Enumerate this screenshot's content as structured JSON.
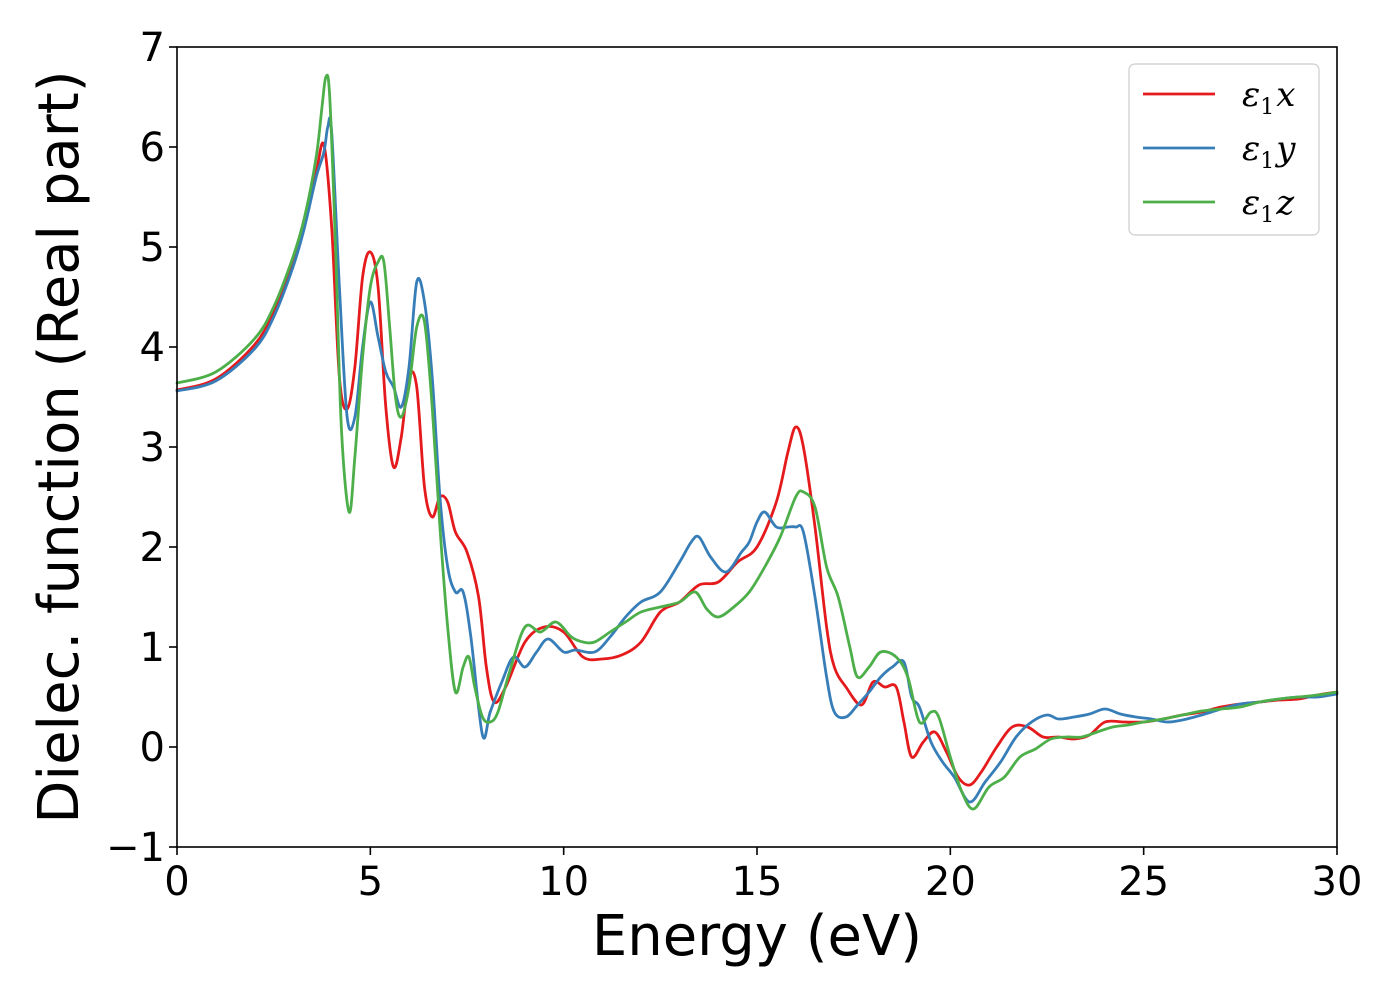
{
  "chart_data": {
    "type": "line",
    "xlabel": "Energy (eV)",
    "ylabel": "Dielec. function (Real part)",
    "xlim": [
      0,
      30
    ],
    "ylim": [
      -1,
      7
    ],
    "xticks": [
      0,
      5,
      10,
      15,
      20,
      25,
      30
    ],
    "yticks": [
      -1,
      0,
      1,
      2,
      3,
      4,
      5,
      6,
      7
    ],
    "xtick_labels": [
      "0",
      "5",
      "10",
      "15",
      "20",
      "25",
      "30"
    ],
    "ytick_labels": [
      "−1",
      "0",
      "1",
      "2",
      "3",
      "4",
      "5",
      "6",
      "7"
    ],
    "grid": false,
    "legend_position": "top-right",
    "series": [
      {
        "name": "ε1x",
        "legend": {
          "base": "ε",
          "sub": "1",
          "var": "x"
        },
        "color": "#e41a1c",
        "x": [
          0,
          1,
          2,
          2.5,
          3,
          3.3,
          3.6,
          3.8,
          4.0,
          4.2,
          4.4,
          4.6,
          4.8,
          5.0,
          5.2,
          5.4,
          5.6,
          5.8,
          6.0,
          6.2,
          6.4,
          6.6,
          6.8,
          7.0,
          7.2,
          7.5,
          7.8,
          8.0,
          8.2,
          8.5,
          9.0,
          9.5,
          10.0,
          10.5,
          11.0,
          11.5,
          12.0,
          12.5,
          13.0,
          13.5,
          14.0,
          14.5,
          15.0,
          15.5,
          15.8,
          16.0,
          16.2,
          16.5,
          16.8,
          17.0,
          17.3,
          17.7,
          18.0,
          18.3,
          18.6,
          18.8,
          19.0,
          19.3,
          19.6,
          19.9,
          20.2,
          20.5,
          20.8,
          21.2,
          21.6,
          22.0,
          22.4,
          22.8,
          23.2,
          23.6,
          24.0,
          24.5,
          25.0,
          25.5,
          26.0,
          26.5,
          27.0,
          27.5,
          28.0,
          28.5,
          29.0,
          29.5,
          30.0
        ],
        "y": [
          3.57,
          3.68,
          4.02,
          4.35,
          4.85,
          5.25,
          5.75,
          6.02,
          5.2,
          3.7,
          3.38,
          3.8,
          4.7,
          4.95,
          4.6,
          3.4,
          2.8,
          3.1,
          3.7,
          3.6,
          2.6,
          2.3,
          2.5,
          2.45,
          2.15,
          1.95,
          1.5,
          0.8,
          0.45,
          0.6,
          1.05,
          1.2,
          1.15,
          0.9,
          0.88,
          0.92,
          1.05,
          1.35,
          1.45,
          1.62,
          1.65,
          1.85,
          2.0,
          2.45,
          2.95,
          3.2,
          3.0,
          2.2,
          1.2,
          0.8,
          0.6,
          0.42,
          0.65,
          0.6,
          0.6,
          0.25,
          -0.1,
          0.05,
          0.15,
          -0.05,
          -0.3,
          -0.38,
          -0.25,
          0.0,
          0.2,
          0.2,
          0.1,
          0.1,
          0.08,
          0.12,
          0.25,
          0.25,
          0.25,
          0.28,
          0.32,
          0.35,
          0.4,
          0.43,
          0.45,
          0.47,
          0.48,
          0.52,
          0.55
        ]
      },
      {
        "name": "ε1y",
        "legend": {
          "base": "ε",
          "sub": "1",
          "var": "y"
        },
        "color": "#377eb8",
        "x": [
          0,
          1,
          2,
          2.5,
          3,
          3.3,
          3.6,
          3.8,
          3.9,
          4.0,
          4.2,
          4.4,
          4.6,
          4.8,
          5.0,
          5.2,
          5.4,
          5.6,
          5.8,
          6.0,
          6.2,
          6.4,
          6.6,
          6.8,
          7.0,
          7.2,
          7.4,
          7.6,
          7.9,
          8.1,
          8.4,
          8.7,
          9.0,
          9.3,
          9.6,
          10.0,
          10.3,
          10.8,
          11.2,
          11.6,
          12.0,
          12.5,
          13.0,
          13.3,
          13.5,
          13.8,
          14.2,
          14.6,
          14.8,
          15.0,
          15.2,
          15.5,
          15.8,
          16.0,
          16.2,
          16.5,
          16.8,
          17.0,
          17.3,
          17.6,
          17.9,
          18.2,
          18.5,
          18.8,
          19.0,
          19.2,
          19.5,
          19.8,
          20.1,
          20.5,
          20.9,
          21.3,
          21.7,
          22.1,
          22.5,
          22.8,
          23.2,
          23.6,
          24.0,
          24.4,
          24.8,
          25.2,
          25.6,
          26.0,
          26.5,
          27.0,
          27.5,
          28.0,
          28.5,
          29.0,
          29.5,
          30.0
        ],
        "y": [
          3.56,
          3.66,
          3.98,
          4.3,
          4.8,
          5.2,
          5.7,
          5.95,
          6.2,
          6.15,
          4.6,
          3.3,
          3.3,
          4.0,
          4.45,
          4.1,
          3.75,
          3.6,
          3.4,
          3.8,
          4.65,
          4.45,
          3.7,
          2.5,
          1.8,
          1.55,
          1.55,
          1.1,
          0.12,
          0.35,
          0.65,
          0.9,
          0.8,
          0.95,
          1.08,
          0.95,
          0.97,
          0.95,
          1.1,
          1.3,
          1.45,
          1.55,
          1.85,
          2.05,
          2.1,
          1.9,
          1.75,
          1.95,
          2.05,
          2.25,
          2.35,
          2.2,
          2.2,
          2.2,
          2.15,
          1.5,
          0.7,
          0.35,
          0.3,
          0.42,
          0.55,
          0.7,
          0.8,
          0.85,
          0.5,
          0.4,
          0.05,
          -0.15,
          -0.3,
          -0.55,
          -0.35,
          -0.15,
          0.1,
          0.25,
          0.32,
          0.28,
          0.3,
          0.33,
          0.38,
          0.33,
          0.3,
          0.28,
          0.25,
          0.27,
          0.32,
          0.38,
          0.43,
          0.45,
          0.48,
          0.5,
          0.5,
          0.53
        ]
      },
      {
        "name": "ε1z",
        "legend": {
          "base": "ε",
          "sub": "1",
          "var": "z"
        },
        "color": "#4daf4a",
        "x": [
          0,
          1,
          2,
          2.5,
          3,
          3.3,
          3.6,
          3.75,
          3.85,
          3.95,
          4.1,
          4.25,
          4.45,
          4.6,
          4.8,
          5.0,
          5.2,
          5.35,
          5.5,
          5.65,
          5.8,
          6.0,
          6.2,
          6.4,
          6.6,
          6.8,
          7.0,
          7.2,
          7.4,
          7.55,
          7.7,
          7.9,
          8.1,
          8.3,
          8.6,
          9.0,
          9.4,
          9.8,
          10.2,
          10.5,
          10.8,
          11.2,
          11.6,
          12.0,
          12.5,
          13.0,
          13.4,
          13.7,
          14.0,
          14.4,
          14.8,
          15.2,
          15.6,
          16.0,
          16.2,
          16.5,
          16.8,
          17.1,
          17.4,
          17.6,
          17.9,
          18.2,
          18.6,
          18.9,
          19.2,
          19.5,
          19.7,
          20.0,
          20.3,
          20.6,
          21.0,
          21.4,
          21.8,
          22.2,
          22.6,
          23.0,
          23.4,
          23.8,
          24.2,
          24.6,
          25.0,
          25.5,
          26.0,
          26.5,
          27.0,
          27.5,
          28.0,
          28.5,
          29.0,
          29.5,
          30.0
        ],
        "y": [
          3.64,
          3.75,
          4.08,
          4.4,
          4.9,
          5.3,
          5.9,
          6.4,
          6.7,
          6.5,
          5.0,
          3.2,
          2.35,
          2.9,
          3.9,
          4.6,
          4.85,
          4.85,
          4.2,
          3.5,
          3.3,
          3.6,
          4.2,
          4.25,
          3.4,
          2.2,
          1.2,
          0.55,
          0.8,
          0.9,
          0.6,
          0.3,
          0.25,
          0.35,
          0.75,
          1.2,
          1.15,
          1.25,
          1.1,
          1.05,
          1.05,
          1.15,
          1.25,
          1.35,
          1.4,
          1.45,
          1.55,
          1.38,
          1.3,
          1.4,
          1.55,
          1.8,
          2.1,
          2.5,
          2.55,
          2.4,
          1.8,
          1.5,
          1.0,
          0.7,
          0.8,
          0.95,
          0.9,
          0.7,
          0.25,
          0.35,
          0.3,
          -0.1,
          -0.45,
          -0.62,
          -0.4,
          -0.3,
          -0.1,
          -0.02,
          0.08,
          0.1,
          0.1,
          0.15,
          0.2,
          0.22,
          0.25,
          0.28,
          0.32,
          0.36,
          0.38,
          0.4,
          0.45,
          0.48,
          0.5,
          0.52,
          0.55
        ]
      }
    ]
  }
}
